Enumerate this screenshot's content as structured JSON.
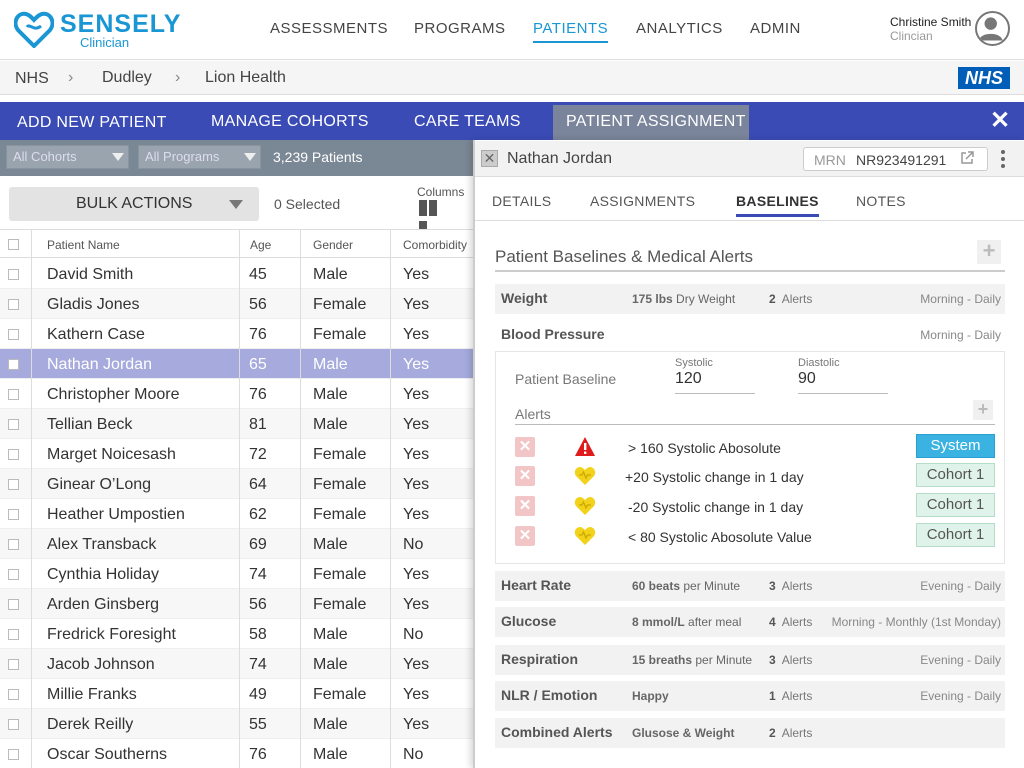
{
  "brand": {
    "name": "SENSELY",
    "sub": "Clinician"
  },
  "nav": {
    "items": [
      "ASSESSMENTS",
      "PROGRAMS",
      "PATIENTS",
      "ANALYTICS",
      "ADMIN"
    ],
    "active": "PATIENTS"
  },
  "user": {
    "name": "Christine Smith",
    "role": "Clincian"
  },
  "breadcrumb": [
    "NHS",
    "Dudley",
    "Lion Health"
  ],
  "nhs_logo": "NHS",
  "actions": {
    "tabs": [
      "ADD NEW PATIENT",
      "MANAGE COHORTS",
      "CARE TEAMS",
      "PATIENT ASSIGNMENT"
    ],
    "active": "PATIENT ASSIGNMENT"
  },
  "filters": {
    "cohorts": "All Cohorts",
    "programs": "All Programs",
    "patient_count": "3,239 Patients"
  },
  "bulk": {
    "label": "BULK ACTIONS",
    "selected": "0 Selected",
    "columns": "Columns"
  },
  "table": {
    "headers": [
      "Patient Name",
      "Age",
      "Gender",
      "Comorbidity"
    ],
    "rows": [
      {
        "name": "David Smith",
        "age": "45",
        "gender": "Male",
        "comorbidity": "Yes"
      },
      {
        "name": "Gladis Jones",
        "age": "56",
        "gender": "Female",
        "comorbidity": "Yes"
      },
      {
        "name": "Kathern Case",
        "age": "76",
        "gender": "Female",
        "comorbidity": "Yes"
      },
      {
        "name": "Nathan Jordan",
        "age": "65",
        "gender": "Male",
        "comorbidity": "Yes"
      },
      {
        "name": "Christopher Moore",
        "age": "76",
        "gender": "Male",
        "comorbidity": "Yes"
      },
      {
        "name": "Tellian Beck",
        "age": "81",
        "gender": "Male",
        "comorbidity": "Yes"
      },
      {
        "name": "Marget Noicesash",
        "age": "72",
        "gender": "Female",
        "comorbidity": "Yes"
      },
      {
        "name": "Ginear O’Long",
        "age": "64",
        "gender": "Female",
        "comorbidity": "Yes"
      },
      {
        "name": "Heather Umpostien",
        "age": "62",
        "gender": "Female",
        "comorbidity": "Yes"
      },
      {
        "name": "Alex Transback",
        "age": "69",
        "gender": "Male",
        "comorbidity": "No"
      },
      {
        "name": "Cynthia Holiday",
        "age": "74",
        "gender": "Female",
        "comorbidity": "Yes"
      },
      {
        "name": "Arden Ginsberg",
        "age": "56",
        "gender": "Female",
        "comorbidity": "Yes"
      },
      {
        "name": "Fredrick Foresight",
        "age": "58",
        "gender": "Male",
        "comorbidity": "No"
      },
      {
        "name": "Jacob Johnson",
        "age": "74",
        "gender": "Male",
        "comorbidity": "Yes"
      },
      {
        "name": "Millie Franks",
        "age": "49",
        "gender": "Female",
        "comorbidity": "Yes"
      },
      {
        "name": "Derek Reilly",
        "age": "55",
        "gender": "Male",
        "comorbidity": "Yes"
      },
      {
        "name": "Oscar Southerns",
        "age": "76",
        "gender": "Male",
        "comorbidity": "No"
      }
    ],
    "selected_row": "Nathan Jordan"
  },
  "patient": {
    "name": "Nathan Jordan",
    "mrn_label": "MRN",
    "mrn": "NR923491291",
    "tabs": [
      "DETAILS",
      "ASSIGNMENTS",
      "BASELINES",
      "NOTES"
    ],
    "active_tab": "BASELINES",
    "section_title": "Patient Baselines & Medical Alerts",
    "weight": {
      "name": "Weight",
      "value": "175 lbs",
      "value_note": "Dry Weight",
      "alerts_count": "2",
      "alerts_word": "Alerts",
      "freq": "Morning - Daily"
    },
    "bp": {
      "name": "Blood Pressure",
      "freq": "Morning - Daily",
      "baseline_label": "Patient Baseline",
      "systolic_label": "Systolic",
      "systolic": "120",
      "diastolic_label": "Diastolic",
      "diastolic": "90",
      "alerts_label": "Alerts",
      "alerts": [
        {
          "icon": "warning-icon",
          "text": "> 160 Systolic Abosolute",
          "badge": "System"
        },
        {
          "icon": "heart-icon",
          "text": "+20 Systolic change in 1 day",
          "badge": "Cohort 1"
        },
        {
          "icon": "heart-icon",
          "text": "-20 Systolic change in 1 day",
          "badge": "Cohort 1"
        },
        {
          "icon": "heart-icon",
          "text": "< 80 Systolic Abosolute Value",
          "badge": "Cohort 1"
        }
      ]
    },
    "metrics": [
      {
        "name": "Heart Rate",
        "value": "60 beats",
        "value_note": "per Minute",
        "alerts_count": "3",
        "alerts_word": "Alerts",
        "freq": "Evening - Daily"
      },
      {
        "name": "Glucose",
        "value": "8 mmol/L",
        "value_note": "after meal",
        "alerts_count": "4",
        "alerts_word": "Alerts",
        "freq": "Morning - Monthly (1st Monday)"
      },
      {
        "name": "Respiration",
        "value": "15 breaths",
        "value_note": "per Minute",
        "alerts_count": "3",
        "alerts_word": "Alerts",
        "freq": "Evening - Daily"
      },
      {
        "name": "NLR / Emotion",
        "value": "Happy",
        "value_note": "",
        "alerts_count": "1",
        "alerts_word": "Alerts",
        "freq": "Evening - Daily"
      },
      {
        "name": "Combined Alerts",
        "value": "Glusose & Weight",
        "value_note": "",
        "alerts_count": "2",
        "alerts_word": "Alerts",
        "freq": ""
      }
    ]
  },
  "colors": {
    "brand": "#1a96d4",
    "actionbar": "#3a4bb5",
    "selected_row": "#a6aadc",
    "system_badge": "#3ab3e3",
    "cohort_badge": "#dff3ea"
  }
}
